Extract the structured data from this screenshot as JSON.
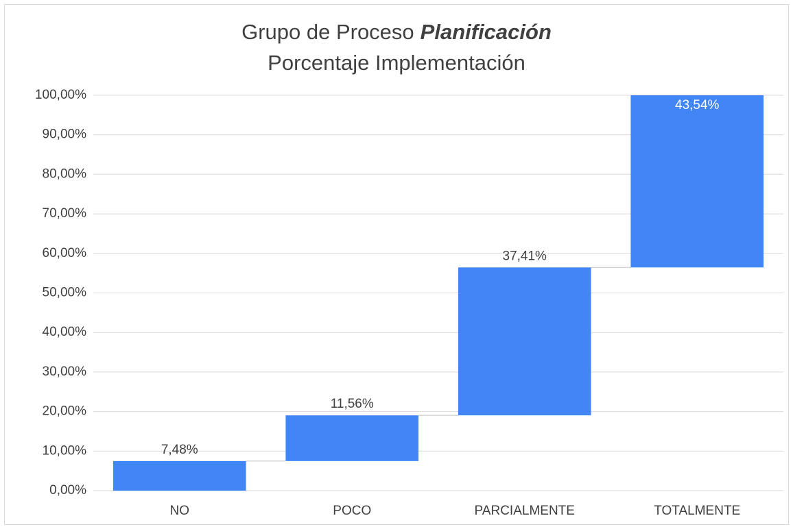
{
  "chart_data": {
    "type": "waterfall",
    "title": {
      "main": "Grupo de Proceso",
      "emphasis": "Planificación"
    },
    "subtitle": "Porcentaje Implementación",
    "categories": [
      "NO",
      "POCO",
      "PARCIALMENTE",
      "TOTALMENTE"
    ],
    "values": [
      7.48,
      11.56,
      37.41,
      43.54
    ],
    "value_labels": [
      "7,48%",
      "11,56%",
      "37,41%",
      "43,54%"
    ],
    "color": "#4285f4",
    "ylim": [
      0,
      100
    ],
    "yticks": [
      {
        "value": 0,
        "label": "0,00%"
      },
      {
        "value": 10,
        "label": "10,00%"
      },
      {
        "value": 20,
        "label": "20,00%"
      },
      {
        "value": 30,
        "label": "30,00%"
      },
      {
        "value": 40,
        "label": "40,00%"
      },
      {
        "value": 50,
        "label": "50,00%"
      },
      {
        "value": 60,
        "label": "60,00%"
      },
      {
        "value": 70,
        "label": "70,00%"
      },
      {
        "value": 80,
        "label": "80,00%"
      },
      {
        "value": 90,
        "label": "90,00%"
      },
      {
        "value": 100,
        "label": "100,00%"
      }
    ],
    "grid": true
  }
}
